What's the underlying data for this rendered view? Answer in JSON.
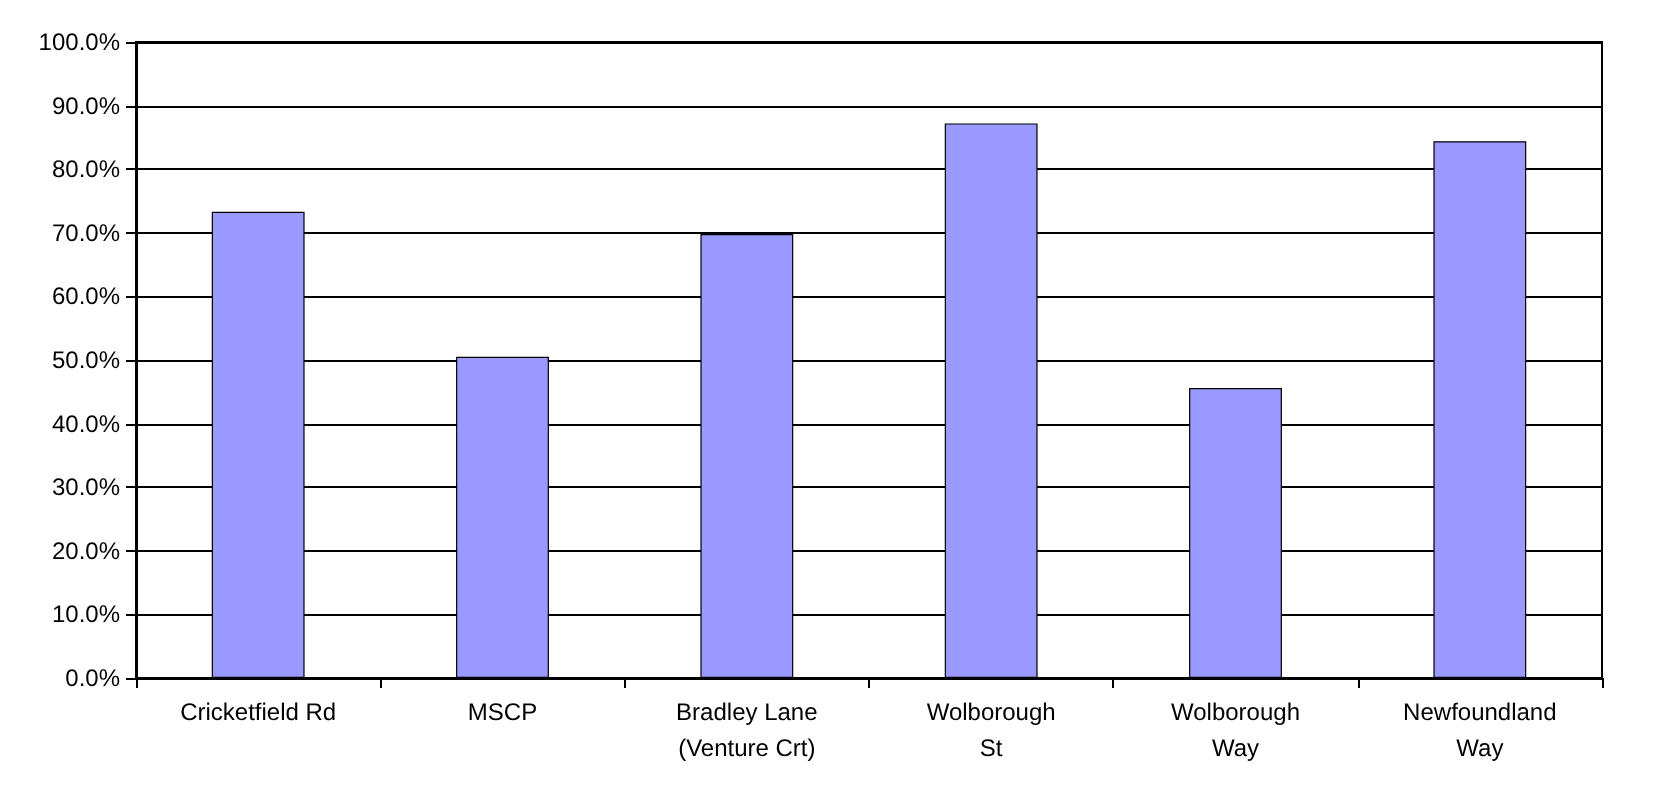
{
  "chart_data": {
    "type": "bar",
    "categories": [
      "Cricketfield Rd",
      "MSCP",
      "Bradley Lane\n(Venture Crt)",
      "Wolborough\nSt",
      "Wolborough\nWay",
      "Newfoundland\nWay"
    ],
    "values": [
      73.3,
      50.5,
      69.8,
      87.2,
      45.6,
      84.4
    ],
    "color": "#9999ff",
    "ylim": [
      0,
      100
    ],
    "yticks": [
      {
        "value": 0,
        "label": "0.0%"
      },
      {
        "value": 10,
        "label": "10.0%"
      },
      {
        "value": 20,
        "label": "20.0%"
      },
      {
        "value": 30,
        "label": "30.0%"
      },
      {
        "value": 40,
        "label": "40.0%"
      },
      {
        "value": 50,
        "label": "50.0%"
      },
      {
        "value": 60,
        "label": "60.0%"
      },
      {
        "value": 70,
        "label": "70.0%"
      },
      {
        "value": 80,
        "label": "80.0%"
      },
      {
        "value": 90,
        "label": "90.0%"
      },
      {
        "value": 100,
        "label": "100.0%"
      }
    ],
    "grid": "y"
  }
}
